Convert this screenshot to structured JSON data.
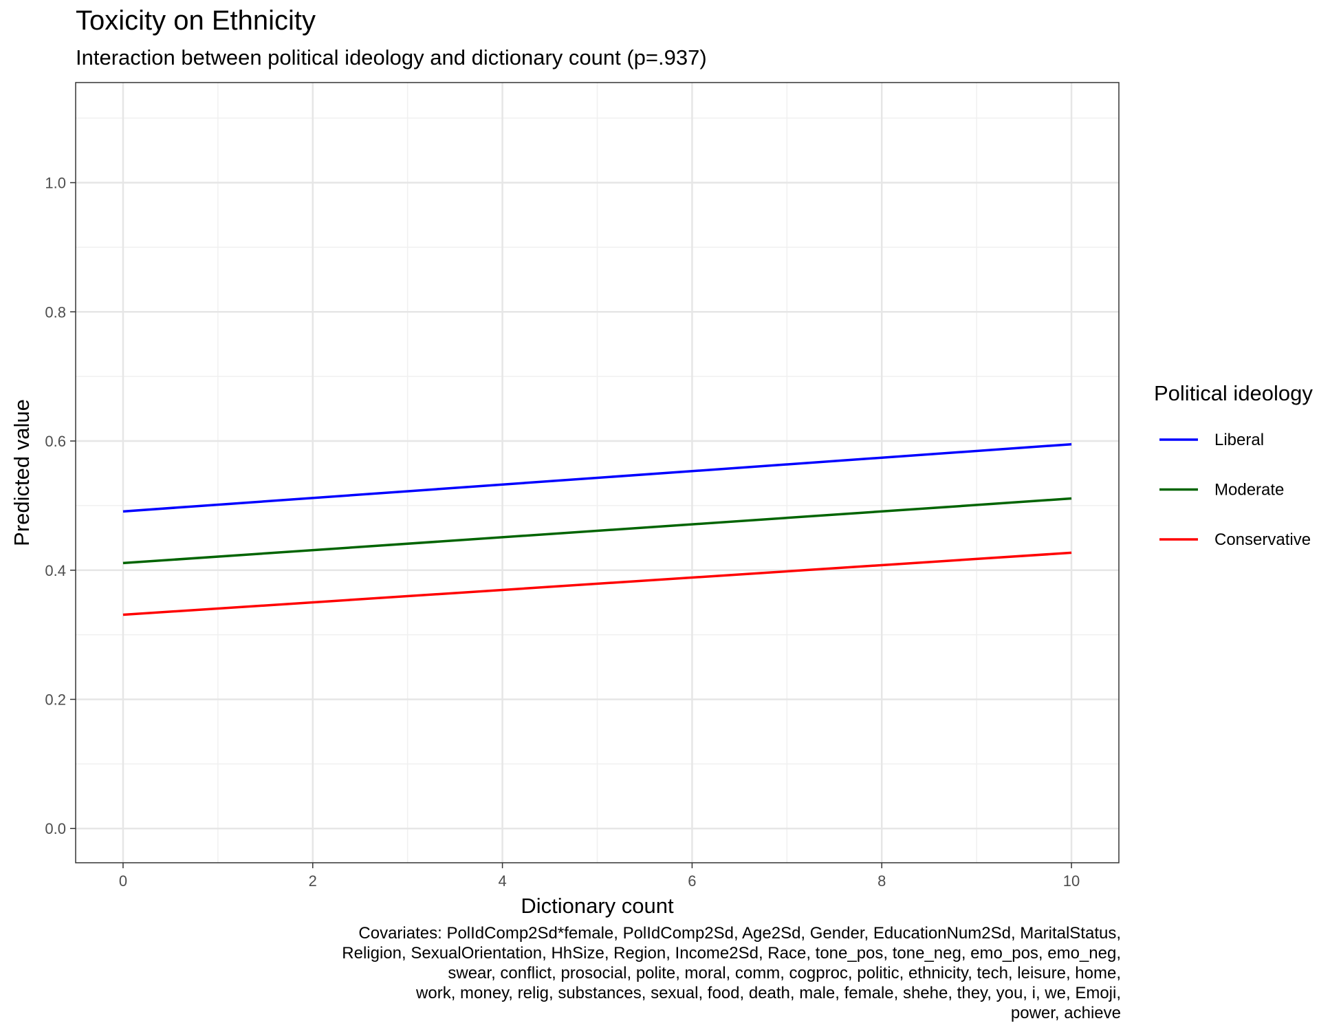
{
  "chart_data": {
    "type": "line",
    "title": "Toxicity on Ethnicity",
    "subtitle": "Interaction between political ideology and dictionary count (p=.937)",
    "xlabel": "Dictionary count",
    "ylabel": "Predicted value",
    "xlim": [
      -0.5,
      10.5
    ],
    "ylim": [
      -0.053,
      1.155
    ],
    "x_ticks": [
      0,
      2,
      4,
      6,
      8,
      10
    ],
    "x_tick_labels": [
      "0",
      "2",
      "4",
      "6",
      "8",
      "10"
    ],
    "y_ticks": [
      0.0,
      0.2,
      0.4,
      0.6,
      0.8,
      1.0
    ],
    "y_tick_labels": [
      "0.0",
      "0.2",
      "0.4",
      "0.6",
      "0.8",
      "1.0"
    ],
    "grid": true,
    "legend": {
      "title": "Political ideology",
      "position": "right"
    },
    "series": [
      {
        "name": "Liberal",
        "color": "#0000ff",
        "x": [
          0,
          10
        ],
        "y": [
          0.491,
          0.595
        ]
      },
      {
        "name": "Moderate",
        "color": "#006400",
        "x": [
          0,
          10
        ],
        "y": [
          0.411,
          0.511
        ]
      },
      {
        "name": "Conservative",
        "color": "#ff0000",
        "x": [
          0,
          10
        ],
        "y": [
          0.331,
          0.427
        ]
      }
    ],
    "caption_lines": [
      "Covariates: PolIdComp2Sd*female, PolIdComp2Sd, Age2Sd, Gender, EducationNum2Sd, MaritalStatus,",
      "Religion, SexualOrientation, HhSize, Region, Income2Sd, Race, tone_pos, tone_neg, emo_pos, emo_neg,",
      "swear, conflict, prosocial, polite, moral, comm, cogproc, politic, ethnicity, tech, leisure, home,",
      "work, money, relig, substances, sexual, food, death, male, female, shehe, they, you, i, we, Emoji,",
      "power, achieve"
    ]
  }
}
